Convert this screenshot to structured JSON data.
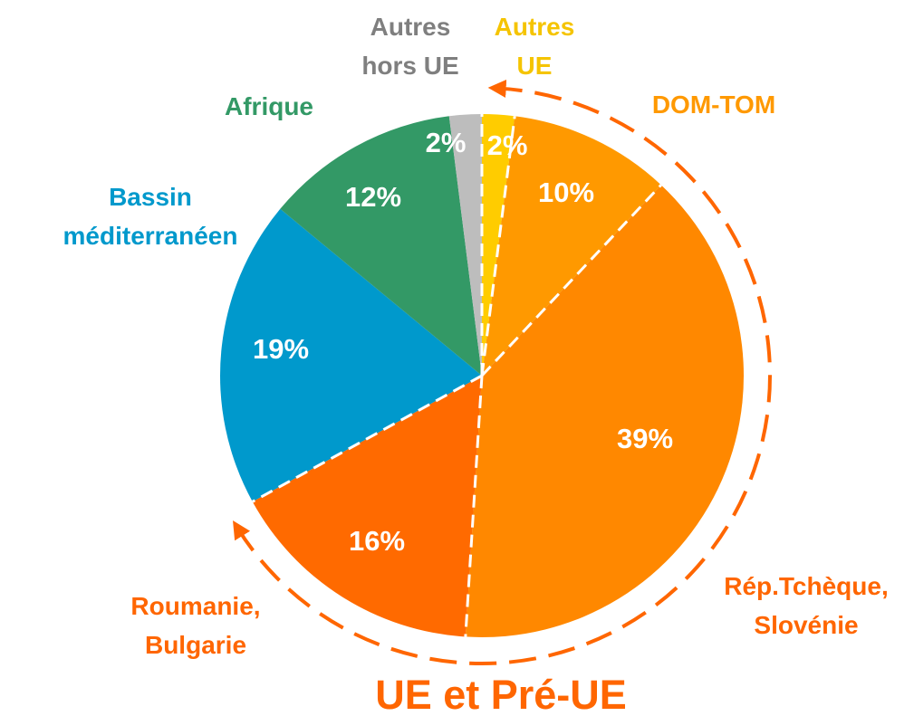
{
  "chart_data": {
    "type": "pie",
    "categories": [
      "Autres UE",
      "DOM-TOM",
      "Rép.Tchèque, Slovénie",
      "Roumanie, Bulgarie",
      "Bassin méditerranéen",
      "Afrique",
      "Autres hors UE"
    ],
    "values": [
      2,
      10,
      39,
      16,
      19,
      12,
      2
    ],
    "value_labels": [
      "2%",
      "10%",
      "39%",
      "16%",
      "19%",
      "12%",
      "2%"
    ],
    "colors": [
      "#ffcc00",
      "#ff9900",
      "#ff8800",
      "#ff6a00",
      "#0099cc",
      "#339966",
      "#bdbdbd"
    ],
    "label_colors": [
      "#f5c400",
      "#ff9900",
      "#ff6600",
      "#ff6600",
      "#0099cc",
      "#339966",
      "#7f7f7f"
    ],
    "annotation": "UE et Pré-UE"
  }
}
